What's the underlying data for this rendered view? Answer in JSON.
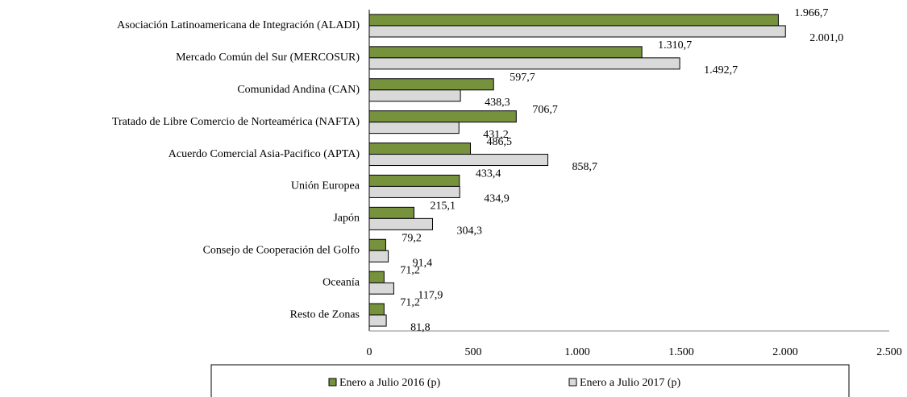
{
  "chart_data": {
    "type": "bar",
    "orientation": "horizontal",
    "categories": [
      "Asociación Latinoamericana de Integración (ALADI)",
      "Mercado Común del Sur (MERCOSUR)",
      "Comunidad Andina (CAN)",
      "Tratado de Libre Comercio de Norteamérica (NAFTA)",
      "Acuerdo Comercial Asia-Pacifico (APTA)",
      "Unión Europea",
      "Japón",
      "Consejo de Cooperación del Golfo",
      "Oceanía",
      "Resto de Zonas"
    ],
    "series": [
      {
        "name": "Enero a Julio 2016 (p)",
        "color": "#76923c",
        "values": [
          1966.7,
          1310.7,
          597.7,
          706.7,
          486.5,
          433.4,
          215.1,
          79.2,
          71.2,
          71.2
        ],
        "value_labels": [
          "1.966,7",
          "1.310,7",
          "597,7",
          "706,7",
          "486,5",
          "433,4",
          "215,1",
          "79,2",
          "71,2",
          "71,2"
        ]
      },
      {
        "name": "Enero a Julio 2017 (p)",
        "color": "#d9d9d9",
        "values": [
          2001.0,
          1492.7,
          438.3,
          431.2,
          858.7,
          434.9,
          304.3,
          91.4,
          117.9,
          81.8
        ],
        "value_labels": [
          "2.001,0",
          "1.492,7",
          "438,3",
          "431,2",
          "858,7",
          "434,9",
          "304,3",
          "91,4",
          "117,9",
          "81,8"
        ]
      }
    ],
    "xlim": [
      0,
      2500
    ],
    "xticks": [
      0,
      500,
      {
        "value": 1000,
        "label": "1.000"
      },
      {
        "value": 1500,
        "label": "1.500"
      },
      {
        "value": 2000,
        "label": "2.000"
      },
      {
        "value": 2500,
        "label": "2.500"
      }
    ],
    "legend": "bottom"
  }
}
